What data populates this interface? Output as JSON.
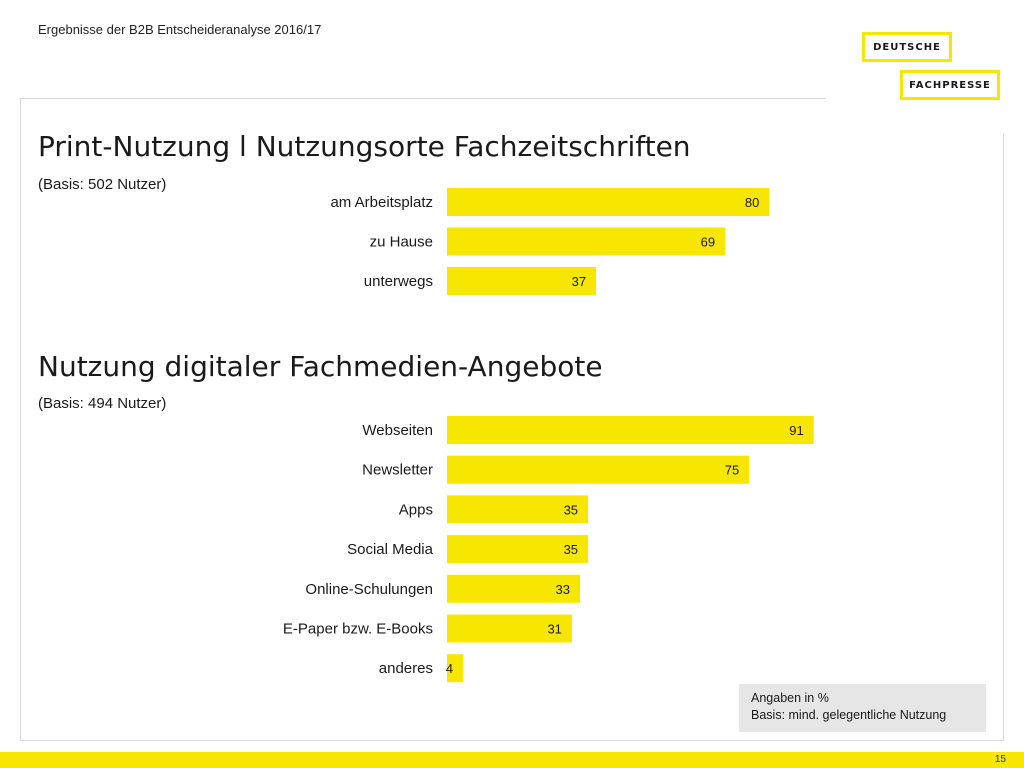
{
  "header": {
    "title": "Ergebnisse der B2B Entscheideranalyse 2016/17"
  },
  "logo": {
    "line1": "DEUTSCHE",
    "line2": "FACHPRESSE",
    "accent": "#f7e600"
  },
  "chart_data": [
    {
      "type": "bar",
      "orientation": "horizontal",
      "title": "Print-Nutzung l Nutzungsorte Fachzeitschriften",
      "subtitle": "(Basis: 502 Nutzer)",
      "categories": [
        "am Arbeitsplatz",
        "zu Hause",
        "unterwegs"
      ],
      "values": [
        80,
        69,
        37
      ],
      "xlim": [
        0,
        100
      ],
      "grid": false,
      "legend": "none",
      "bar_color": "#f7e600"
    },
    {
      "type": "bar",
      "orientation": "horizontal",
      "title": "Nutzung digitaler Fachmedien-Angebote",
      "subtitle": "(Basis: 494 Nutzer)",
      "categories": [
        "Webseiten",
        "Newsletter",
        "Apps",
        "Social Media",
        "Online-Schulungen",
        "E-Paper bzw. E-Books",
        "anderes"
      ],
      "values": [
        91,
        75,
        35,
        35,
        33,
        31,
        4
      ],
      "xlim": [
        0,
        100
      ],
      "grid": false,
      "legend": "none",
      "bar_color": "#f7e600"
    }
  ],
  "note": {
    "line1": "Angaben in %",
    "line2": "Basis: mind. gelegentliche Nutzung"
  },
  "footer": {
    "page_number": "15"
  }
}
